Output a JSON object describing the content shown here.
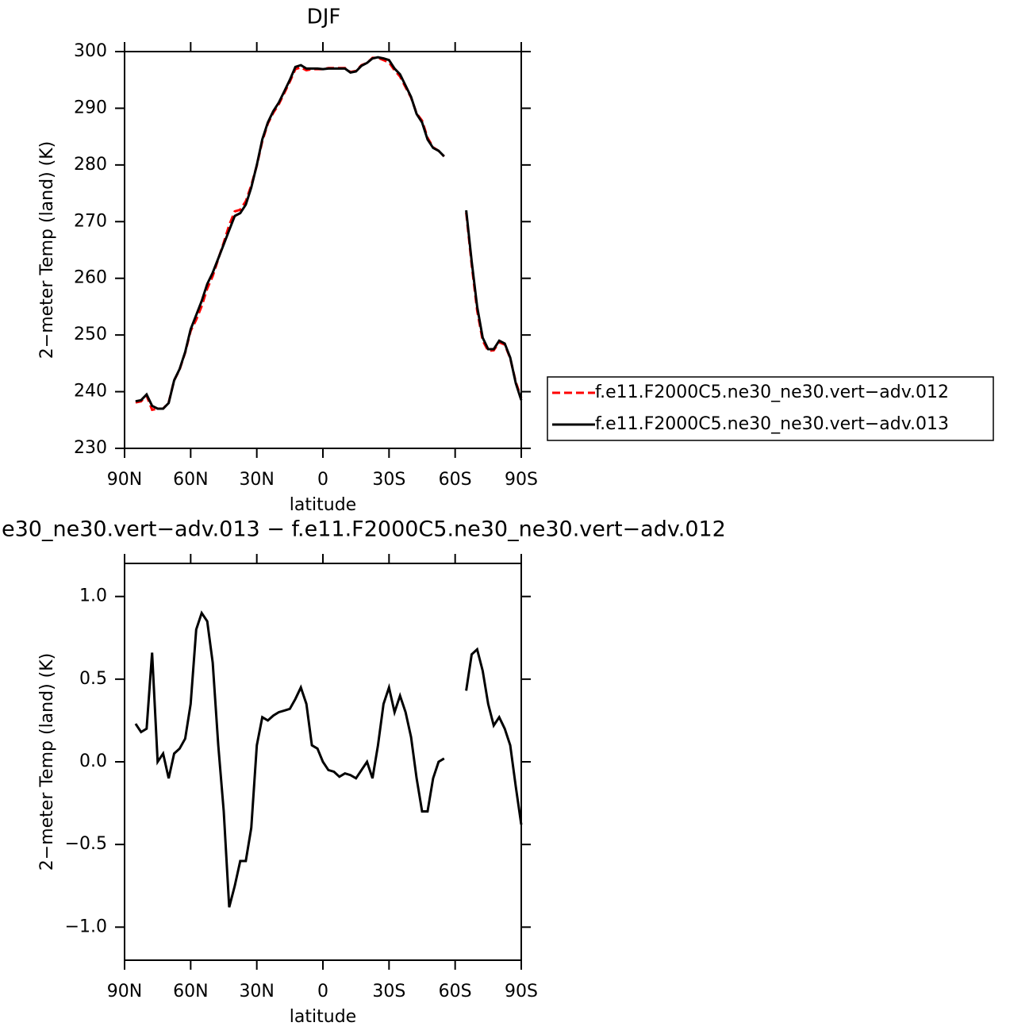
{
  "chart_data": [
    {
      "type": "line",
      "title": "DJF",
      "xlabel": "latitude",
      "ylabel": "2−meter Temp (land) (K)",
      "x": [
        85,
        82.5,
        80,
        77.5,
        75,
        72.5,
        70,
        67.5,
        65,
        62.5,
        60,
        57.5,
        55,
        52.5,
        50,
        47.5,
        45,
        42.5,
        40,
        37.5,
        35,
        32.5,
        30,
        27.5,
        25,
        22.5,
        20,
        17.5,
        15,
        12.5,
        10,
        7.5,
        5,
        2.5,
        0,
        -2.5,
        -5,
        -7.5,
        -10,
        -12.5,
        -15,
        -17.5,
        -20,
        -22.5,
        -25,
        -27.5,
        -30,
        -32.5,
        -35,
        -37.5,
        -40,
        -42.5,
        -45,
        -47.5,
        -50,
        -52.5,
        -55,
        -57.5,
        -60,
        -62.5,
        -65,
        -67.5,
        -70,
        -72.5,
        -75,
        -77.5,
        -80,
        -82.5,
        -85,
        -87.5,
        -90
      ],
      "xlim": [
        90,
        -90
      ],
      "xticks": [
        {
          "value": 90,
          "label": "90N"
        },
        {
          "value": 60,
          "label": "60N"
        },
        {
          "value": 30,
          "label": "30N"
        },
        0,
        {
          "value": -30,
          "label": "30S"
        },
        {
          "value": -60,
          "label": "60S"
        },
        {
          "value": -90,
          "label": "90S"
        }
      ],
      "ylim": [
        230,
        300
      ],
      "yticks": [
        230,
        240,
        250,
        260,
        270,
        280,
        290,
        300
      ],
      "legend": "right",
      "series": [
        {
          "name": "f.e11.F2000C5.ne30_ne30.vert−adv.012",
          "color": "#ff0000",
          "line_style": "dashed",
          "values": [
            238.1,
            238.3,
            239.3,
            236.8,
            237,
            237,
            238.1,
            242,
            243.9,
            246.9,
            250.7,
            252.7,
            255.1,
            258.2,
            260.4,
            263.4,
            266.3,
            269.4,
            271.8,
            272.1,
            273.6,
            276.4,
            279.9,
            284.2,
            287.3,
            289.2,
            290.7,
            292.7,
            294.7,
            296.9,
            297.2,
            296.7,
            296.9,
            296.9,
            296.9,
            297.1,
            297.1,
            297.1,
            297.1,
            296.4,
            296.6,
            297.6,
            298,
            298.9,
            298.9,
            298.5,
            298.1,
            296.7,
            295.6,
            293.7,
            291.9,
            289.1,
            287.8,
            284.8,
            283.1,
            282.5,
            281.5,
            null,
            null,
            null,
            271.6,
            262.4,
            254.3,
            249,
            247.2,
            247.3,
            248.7,
            248.3,
            245.9,
            241.7,
            238.9
          ]
        },
        {
          "name": "f.e11.F2000C5.ne30_ne30.vert−adv.013",
          "color": "#000000",
          "line_style": "solid",
          "values": [
            238.3,
            238.5,
            239.5,
            237.5,
            237,
            237,
            238,
            242,
            244,
            247,
            251,
            253.5,
            256,
            259,
            261,
            263.5,
            266,
            268.5,
            271,
            271.5,
            273,
            276,
            280,
            284.5,
            287.5,
            289.5,
            291,
            293,
            295,
            297.3,
            297.6,
            297,
            297,
            297,
            296.9,
            297,
            297,
            297,
            297,
            296.3,
            296.5,
            297.5,
            298,
            298.8,
            299,
            298.8,
            298.5,
            297,
            296,
            294,
            292,
            289,
            287.5,
            284.5,
            283,
            282.5,
            281.5,
            null,
            null,
            null,
            272,
            263,
            255,
            249.5,
            247.5,
            247.5,
            249,
            248.5,
            246,
            241.5,
            238.5
          ]
        }
      ]
    },
    {
      "type": "line",
      "title": "e30_ne30.vert−adv.013 − f.e11.F2000C5.ne30_ne30.vert−adv.012",
      "xlabel": "latitude",
      "ylabel": "2−meter Temp (land) (K)",
      "x": [
        85,
        82.5,
        80,
        77.5,
        75,
        72.5,
        70,
        67.5,
        65,
        62.5,
        60,
        57.5,
        55,
        52.5,
        50,
        47.5,
        45,
        42.5,
        40,
        37.5,
        35,
        32.5,
        30,
        27.5,
        25,
        22.5,
        20,
        17.5,
        15,
        12.5,
        10,
        7.5,
        5,
        2.5,
        0,
        -2.5,
        -5,
        -7.5,
        -10,
        -12.5,
        -15,
        -17.5,
        -20,
        -22.5,
        -25,
        -27.5,
        -30,
        -32.5,
        -35,
        -37.5,
        -40,
        -42.5,
        -45,
        -47.5,
        -50,
        -52.5,
        -55,
        -57.5,
        -60,
        -62.5,
        -65,
        -67.5,
        -70,
        -72.5,
        -75,
        -77.5,
        -80,
        -82.5,
        -85,
        -87.5,
        -90
      ],
      "xlim": [
        90,
        -90
      ],
      "xticks": [
        {
          "value": 90,
          "label": "90N"
        },
        {
          "value": 60,
          "label": "60N"
        },
        {
          "value": 30,
          "label": "30N"
        },
        0,
        {
          "value": -30,
          "label": "30S"
        },
        {
          "value": -60,
          "label": "60S"
        },
        {
          "value": -90,
          "label": "90S"
        }
      ],
      "ylim": [
        -1.2,
        1.2
      ],
      "yticks": [
        {
          "value": -1,
          "label": "−1.0"
        },
        {
          "value": -0.5,
          "label": "−0.5"
        },
        {
          "value": 0,
          "label": "0.0"
        },
        0.5,
        {
          "value": 1,
          "label": "1.0"
        }
      ],
      "series": [
        {
          "color": "#000000",
          "line_style": "solid",
          "values": [
            0.23,
            0.18,
            0.2,
            0.66,
            0.0,
            0.05,
            -0.1,
            0.05,
            0.08,
            0.14,
            0.35,
            0.8,
            0.9,
            0.85,
            0.6,
            0.1,
            -0.3,
            -0.88,
            -0.75,
            -0.6,
            -0.6,
            -0.4,
            0.1,
            0.27,
            0.25,
            0.28,
            0.3,
            0.31,
            0.32,
            0.38,
            0.45,
            0.35,
            0.1,
            0.08,
            0.0,
            -0.05,
            -0.06,
            -0.09,
            -0.07,
            -0.08,
            -0.1,
            -0.05,
            0.0,
            -0.1,
            0.1,
            0.35,
            0.45,
            0.3,
            0.4,
            0.3,
            0.15,
            -0.1,
            -0.3,
            -0.3,
            -0.1,
            0.0,
            0.02,
            null,
            null,
            null,
            0.43,
            0.65,
            0.68,
            0.55,
            0.35,
            0.22,
            0.27,
            0.2,
            0.1,
            -0.15,
            -0.38
          ]
        }
      ]
    }
  ]
}
